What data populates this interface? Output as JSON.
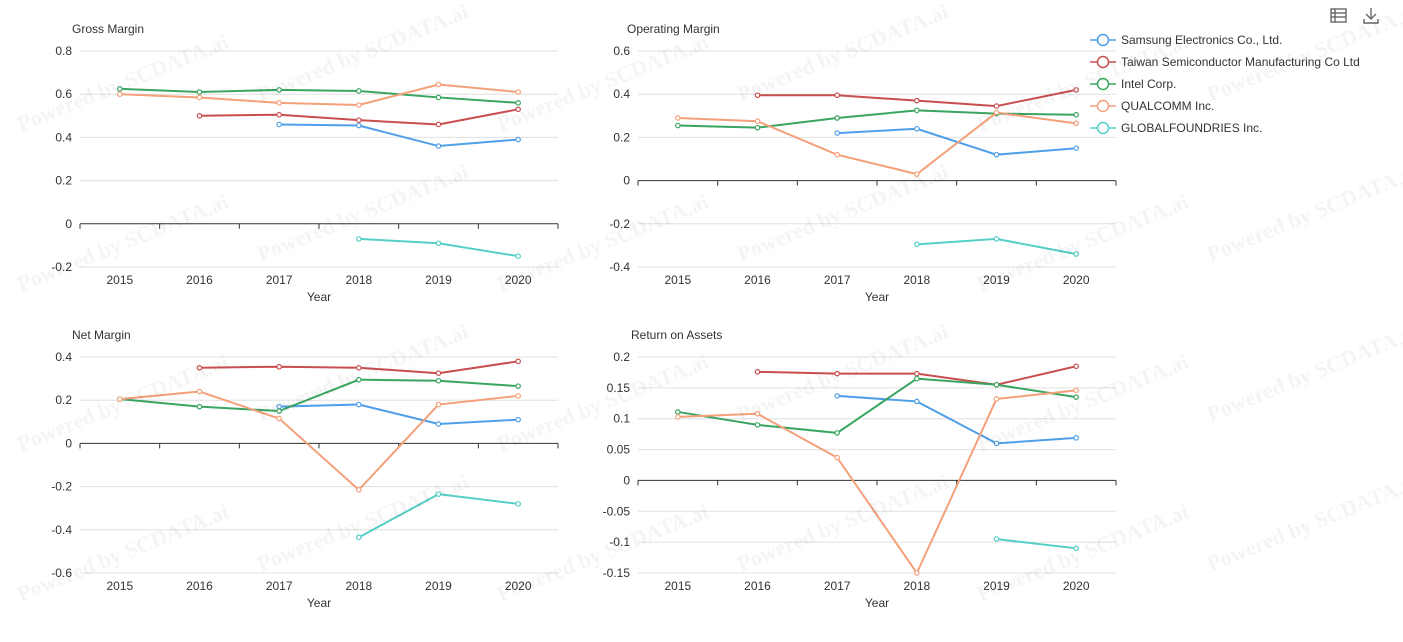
{
  "colors": {
    "samsung": "#4f9fe8",
    "tsmc": "#c94e4e",
    "intel": "#3aa561",
    "qualcomm": "#f4a07a",
    "globalfoundries": "#55cfc6",
    "grid": "#e0e0e0",
    "axis": "#333333"
  },
  "legend": [
    {
      "key": "samsung",
      "label": "Samsung Electronics Co., Ltd."
    },
    {
      "key": "tsmc",
      "label": "Taiwan Semiconductor Manufacturing Co Ltd"
    },
    {
      "key": "intel",
      "label": "Intel Corp."
    },
    {
      "key": "qualcomm",
      "label": "QUALCOMM Inc."
    },
    {
      "key": "globalfoundries",
      "label": "GLOBALFOUNDRIES Inc."
    }
  ],
  "toolbar": {
    "data_view_icon": "data-view-icon",
    "download_icon": "download-icon"
  },
  "watermark": "Powered by SCDATA.ai",
  "chart_data": [
    {
      "type": "line",
      "title": "Gross Margin",
      "xlabel": "Year",
      "ylabel": "",
      "categories": [
        "2015",
        "2016",
        "2017",
        "2018",
        "2019",
        "2020"
      ],
      "ylim": [
        -0.2,
        0.8
      ],
      "yticks": [
        "0.8",
        "0.6",
        "0.4",
        "0.2",
        "0",
        "-0.2"
      ],
      "series": [
        {
          "name": "Samsung Electronics Co., Ltd.",
          "key": "samsung",
          "values": [
            null,
            null,
            0.46,
            0.455,
            0.36,
            0.39
          ]
        },
        {
          "name": "Taiwan Semiconductor Manufacturing Co Ltd",
          "key": "tsmc",
          "values": [
            null,
            0.5,
            0.505,
            0.48,
            0.46,
            0.53
          ]
        },
        {
          "name": "Intel Corp.",
          "key": "intel",
          "values": [
            0.625,
            0.61,
            0.62,
            0.615,
            0.585,
            0.56
          ]
        },
        {
          "name": "QUALCOMM Inc.",
          "key": "qualcomm",
          "values": [
            0.6,
            0.585,
            0.56,
            0.55,
            0.645,
            0.61
          ]
        },
        {
          "name": "GLOBALFOUNDRIES Inc.",
          "key": "globalfoundries",
          "values": [
            null,
            null,
            null,
            -0.07,
            -0.09,
            -0.15
          ]
        }
      ]
    },
    {
      "type": "line",
      "title": "Operating Margin",
      "xlabel": "Year",
      "ylabel": "",
      "categories": [
        "2015",
        "2016",
        "2017",
        "2018",
        "2019",
        "2020"
      ],
      "ylim": [
        -0.4,
        0.6
      ],
      "yticks": [
        "0.6",
        "0.4",
        "0.2",
        "0",
        "-0.2",
        "-0.4"
      ],
      "series": [
        {
          "name": "Samsung Electronics Co., Ltd.",
          "key": "samsung",
          "values": [
            null,
            null,
            0.22,
            0.24,
            0.12,
            0.15
          ]
        },
        {
          "name": "Taiwan Semiconductor Manufacturing Co Ltd",
          "key": "tsmc",
          "values": [
            null,
            0.395,
            0.395,
            0.37,
            0.345,
            0.42
          ]
        },
        {
          "name": "Intel Corp.",
          "key": "intel",
          "values": [
            0.255,
            0.245,
            0.29,
            0.325,
            0.31,
            0.305
          ]
        },
        {
          "name": "QUALCOMM Inc.",
          "key": "qualcomm",
          "values": [
            0.29,
            0.275,
            0.12,
            0.03,
            0.315,
            0.265
          ]
        },
        {
          "name": "GLOBALFOUNDRIES Inc.",
          "key": "globalfoundries",
          "values": [
            null,
            null,
            null,
            -0.295,
            -0.27,
            -0.34
          ]
        }
      ]
    },
    {
      "type": "line",
      "title": "Net Margin",
      "xlabel": "Year",
      "ylabel": "",
      "categories": [
        "2015",
        "2016",
        "2017",
        "2018",
        "2019",
        "2020"
      ],
      "ylim": [
        -0.6,
        0.4
      ],
      "yticks": [
        "0.4",
        "0.2",
        "0",
        "-0.2",
        "-0.4",
        "-0.6"
      ],
      "series": [
        {
          "name": "Samsung Electronics Co., Ltd.",
          "key": "samsung",
          "values": [
            null,
            null,
            0.17,
            0.18,
            0.09,
            0.11
          ]
        },
        {
          "name": "Taiwan Semiconductor Manufacturing Co Ltd",
          "key": "tsmc",
          "values": [
            null,
            0.35,
            0.355,
            0.35,
            0.325,
            0.38
          ]
        },
        {
          "name": "Intel Corp.",
          "key": "intel",
          "values": [
            0.205,
            0.17,
            0.15,
            0.295,
            0.29,
            0.265
          ]
        },
        {
          "name": "QUALCOMM Inc.",
          "key": "qualcomm",
          "values": [
            0.205,
            0.24,
            0.115,
            -0.215,
            0.18,
            0.22
          ]
        },
        {
          "name": "GLOBALFOUNDRIES Inc.",
          "key": "globalfoundries",
          "values": [
            null,
            null,
            null,
            -0.435,
            -0.235,
            -0.28
          ]
        }
      ]
    },
    {
      "type": "line",
      "title": "Return on Assets",
      "xlabel": "Year",
      "ylabel": "",
      "categories": [
        "2015",
        "2016",
        "2017",
        "2018",
        "2019",
        "2020"
      ],
      "ylim": [
        -0.15,
        0.2
      ],
      "yticks": [
        "0.2",
        "0.15",
        "0.1",
        "0.05",
        "0",
        "-0.05",
        "-0.1",
        "-0.15"
      ],
      "series": [
        {
          "name": "Samsung Electronics Co., Ltd.",
          "key": "samsung",
          "values": [
            null,
            null,
            0.137,
            0.128,
            0.06,
            0.069
          ]
        },
        {
          "name": "Taiwan Semiconductor Manufacturing Co Ltd",
          "key": "tsmc",
          "values": [
            null,
            0.176,
            0.173,
            0.173,
            0.155,
            0.185
          ]
        },
        {
          "name": "Intel Corp.",
          "key": "intel",
          "values": [
            0.111,
            0.09,
            0.077,
            0.165,
            0.155,
            0.135
          ]
        },
        {
          "name": "QUALCOMM Inc.",
          "key": "qualcomm",
          "values": [
            0.103,
            0.108,
            0.037,
            -0.15,
            0.132,
            0.146
          ]
        },
        {
          "name": "GLOBALFOUNDRIES Inc.",
          "key": "globalfoundries",
          "values": [
            null,
            null,
            null,
            null,
            -0.095,
            -0.11
          ]
        }
      ]
    }
  ]
}
